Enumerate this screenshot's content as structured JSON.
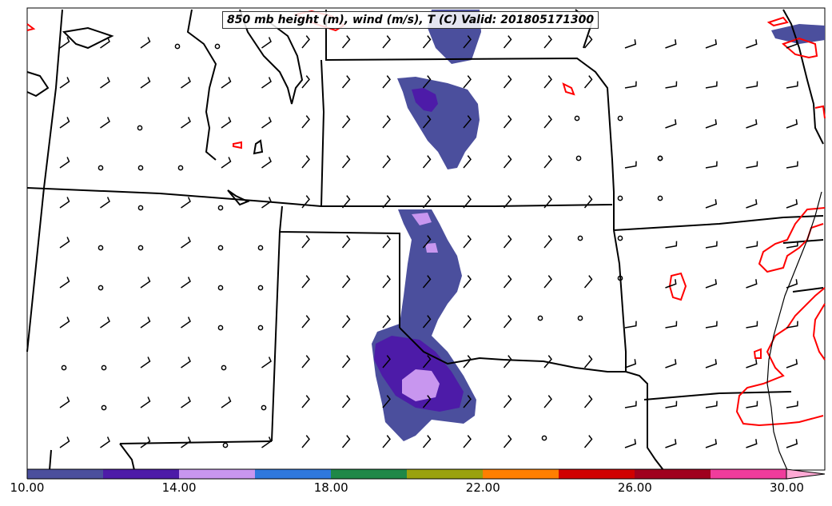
{
  "title": "850 mb height (m), wind (m/s), T (C) Valid: 201805171300",
  "colorbar": {
    "colors": [
      "#4b4f9d",
      "#4d1ba8",
      "#c896ef",
      "#2f78dd",
      "#1f8848",
      "#9aa20e",
      "#ff7f00",
      "#d00000",
      "#a0001e",
      "#f03c9c",
      "#ffa9d4"
    ],
    "labels": [
      "10.00",
      "14.00",
      "18.00",
      "22.00",
      "26.00",
      "30.00"
    ],
    "range": [
      10,
      31
    ],
    "extend": "max"
  },
  "map_colors": {
    "boundary": "#000000",
    "contour_30C": "#ff0000",
    "wind_barb": "#000000"
  }
}
